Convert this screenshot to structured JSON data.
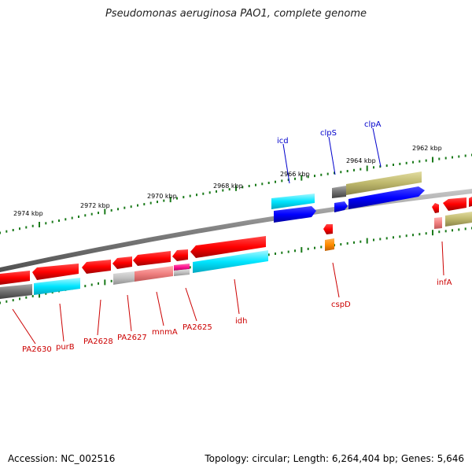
{
  "title": "Pseudomonas aeruginosa PAO1, complete genome",
  "footer": {
    "accession": "Accession: NC_002516",
    "summary": "Topology: circular; Length: 6,264,404 bp; Genes: 5,646"
  },
  "colors": {
    "gene_red": "#ff0000",
    "gene_red_light": "#f08080",
    "gene_blue": "#0000ff",
    "gene_cyan": "#00e5ff",
    "gene_grey": "#808080",
    "gene_olive": "#bdb76b",
    "gene_orange": "#ff8c00",
    "gene_magenta": "#ff1493",
    "tick_green": "#1a7a1a",
    "label_red": "#cc0000",
    "label_blue": "#0000cc",
    "backbone": "#888888"
  },
  "scale_labels": [
    "2974 kbp",
    "2972 kbp",
    "2970 kbp",
    "2968 kbp",
    "2966 kbp",
    "2964 kbp",
    "2962 kbp"
  ],
  "gene_labels_top": [
    "icd",
    "clpS",
    "clpA"
  ],
  "gene_labels_bottom": [
    "PA2630",
    "purB",
    "PA2628",
    "PA2627",
    "mnmA",
    "PA2625",
    "idh",
    "cspD",
    "infA"
  ]
}
